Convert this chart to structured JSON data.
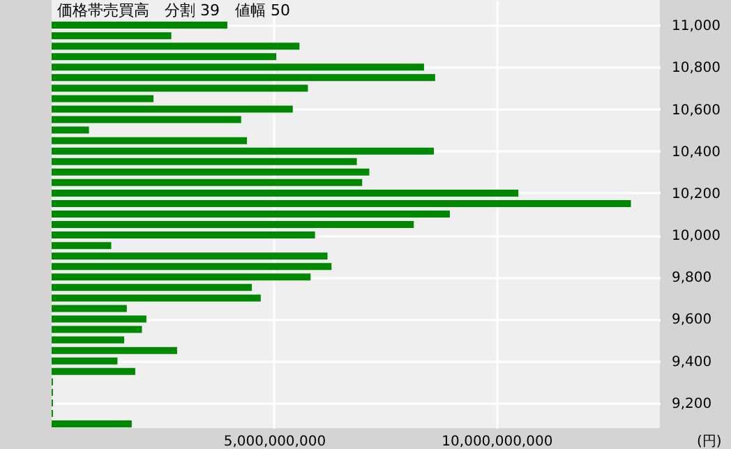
{
  "chart_data": {
    "type": "bar",
    "orientation": "horizontal",
    "title": "価格帯売買高　分割 39　値幅 50",
    "xlabel": "(円)",
    "x": [
      11000,
      10950,
      10900,
      10850,
      10800,
      10750,
      10700,
      10650,
      10600,
      10550,
      10500,
      10450,
      10400,
      10350,
      10300,
      10250,
      10200,
      10150,
      10100,
      10050,
      10000,
      9950,
      9900,
      9850,
      9800,
      9750,
      9700,
      9650,
      9600,
      9550,
      9500,
      9450,
      9400,
      9350,
      9300,
      9250,
      9200,
      9150,
      9100
    ],
    "values": [
      3950000000,
      2690000000,
      5570000000,
      5050000000,
      8370000000,
      8620000000,
      5760000000,
      2290000000,
      5420000000,
      4260000000,
      840000000,
      4390000000,
      8590000000,
      6860000000,
      7140000000,
      6980000000,
      10490000000,
      13020000000,
      8950000000,
      8140000000,
      5920000000,
      1340000000,
      6200000000,
      6290000000,
      5820000000,
      4500000000,
      4700000000,
      1690000000,
      2130000000,
      2030000000,
      1630000000,
      2820000000,
      1480000000,
      1880000000,
      30000000,
      30000000,
      30000000,
      30000000,
      1800000000
    ],
    "color": "#008800",
    "xlim": [
      0,
      13670000000
    ],
    "xticks": [
      {
        "value": 5000000000,
        "label": "5,000,000,000"
      },
      {
        "value": 10000000000,
        "label": "10,000,000,000"
      }
    ],
    "ylim": [
      9080,
      11120
    ],
    "yticks": [
      {
        "value": 9200,
        "label": "9,200"
      },
      {
        "value": 9400,
        "label": "9,400"
      },
      {
        "value": 9600,
        "label": "9,600"
      },
      {
        "value": 9800,
        "label": "9,800"
      },
      {
        "value": 10000,
        "label": "10,000"
      },
      {
        "value": 10200,
        "label": "10,200"
      },
      {
        "value": 10400,
        "label": "10,400"
      },
      {
        "value": 10600,
        "label": "10,600"
      },
      {
        "value": 10800,
        "label": "10,800"
      },
      {
        "value": 11000,
        "label": "11,000"
      }
    ],
    "grid": true
  }
}
